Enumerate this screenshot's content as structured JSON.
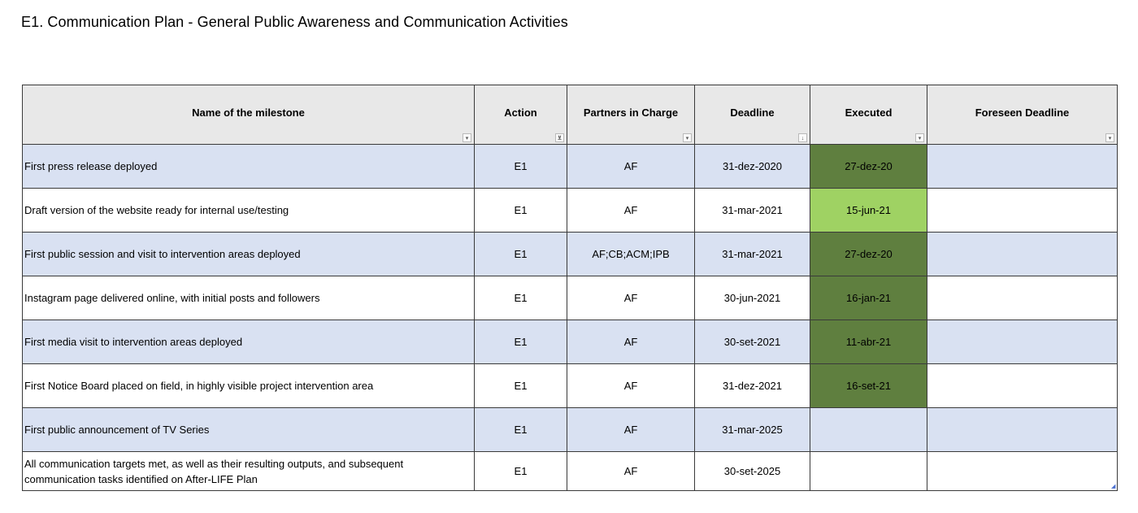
{
  "title": "E1. Communication Plan - General Public Awareness and Communication Activities",
  "columns": [
    {
      "label": "Name of the milestone",
      "filter_icon": "dropdown-arrow-icon",
      "glyph": "▾"
    },
    {
      "label": "Action",
      "filter_icon": "filter-applied-icon",
      "glyph": "⊻"
    },
    {
      "label": "Partners in Charge",
      "filter_icon": "dropdown-arrow-icon",
      "glyph": "▾"
    },
    {
      "label": "Deadline",
      "filter_icon": "sort-ascending-icon",
      "glyph": "↓"
    },
    {
      "label": "Executed",
      "filter_icon": "dropdown-arrow-icon",
      "glyph": "▾"
    },
    {
      "label": "Foreseen Deadline",
      "filter_icon": "dropdown-arrow-icon",
      "glyph": "▾"
    }
  ],
  "colors": {
    "row_shade": "#d9e1f2",
    "executed_dark": "#5f7f3f",
    "executed_light": "#9fd263",
    "header_bg": "#e8e8e8"
  },
  "rows": [
    {
      "name": "First press release deployed",
      "action": "E1",
      "partners": "AF",
      "deadline": "31-dez-2020",
      "executed": "27-dez-20",
      "foreseen": ""
    },
    {
      "name": "Draft version of the website ready for internal use/testing",
      "action": "E1",
      "partners": "AF",
      "deadline": "31-mar-2021",
      "executed": "15-jun-21",
      "foreseen": ""
    },
    {
      "name": "First public session and visit to intervention areas deployed",
      "action": "E1",
      "partners": "AF;CB;ACM;IPB",
      "deadline": "31-mar-2021",
      "executed": "27-dez-20",
      "foreseen": ""
    },
    {
      "name": "Instagram page delivered online, with initial posts and followers",
      "action": "E1",
      "partners": "AF",
      "deadline": "30-jun-2021",
      "executed": "16-jan-21",
      "foreseen": ""
    },
    {
      "name": "First media visit to intervention areas deployed",
      "action": "E1",
      "partners": "AF",
      "deadline": "30-set-2021",
      "executed": "11-abr-21",
      "foreseen": ""
    },
    {
      "name": "First Notice Board placed on field, in highly visible project intervention area",
      "action": "E1",
      "partners": "AF",
      "deadline": "31-dez-2021",
      "executed": "16-set-21",
      "foreseen": ""
    },
    {
      "name": "First public announcement of TV Series",
      "action": "E1",
      "partners": "AF",
      "deadline": "31-mar-2025",
      "executed": "",
      "foreseen": ""
    },
    {
      "name": "All communication targets met, as well as their resulting outputs, and subsequent communication tasks identified on After-LIFE Plan",
      "action": "E1",
      "partners": "AF",
      "deadline": "30-set-2025",
      "executed": "",
      "foreseen": ""
    }
  ]
}
